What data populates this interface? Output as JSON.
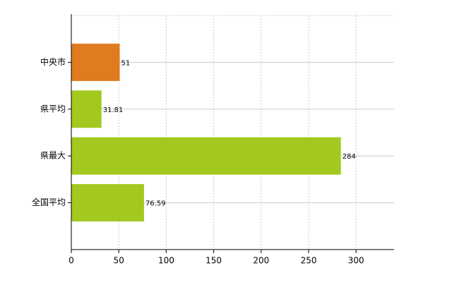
{
  "chart_data": {
    "type": "bar",
    "orientation": "horizontal",
    "categories": [
      "中央市",
      "県平均",
      "県最大",
      "全国平均"
    ],
    "values": [
      51,
      31.81,
      284,
      76.59
    ],
    "colors": [
      "#e07b20",
      "#a3c920",
      "#a3c920",
      "#a3c920"
    ],
    "xlim": [
      0,
      340
    ],
    "xticks": [
      0,
      50,
      100,
      150,
      200,
      250,
      300
    ],
    "grid": true
  }
}
